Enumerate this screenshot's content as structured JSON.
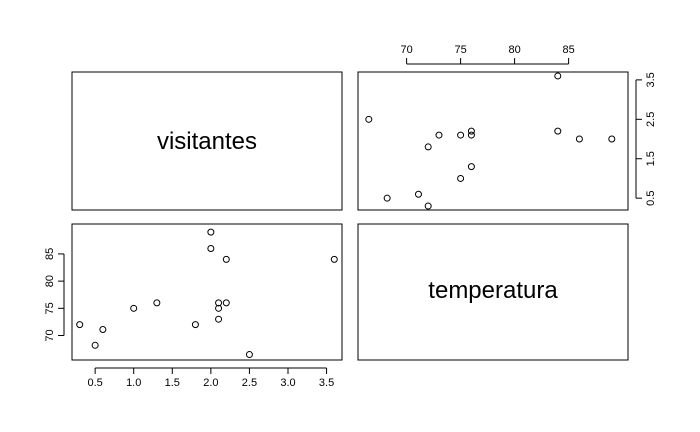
{
  "chart_data": {
    "type": "scatter",
    "variables": [
      "visitantes",
      "temperatura"
    ],
    "panels": [
      {
        "position": "top-right",
        "x_variable": "temperatura",
        "y_variable": "visitantes",
        "xlim": [
          65.5,
          90.5
        ],
        "ylim": [
          0.2,
          3.7
        ],
        "x_ticks": [
          70,
          75,
          80,
          85
        ],
        "y_ticks": [
          0.5,
          1.5,
          2.5,
          3.5
        ],
        "x_tick_labels": [
          "70",
          "75",
          "80",
          "85"
        ],
        "y_tick_labels": [
          "0.5",
          "1.5",
          "2.5",
          "3.5"
        ],
        "x_axis_side": "top",
        "y_axis_side": "right",
        "points": [
          {
            "x": 66.5,
            "y": 2.5
          },
          {
            "x": 68.2,
            "y": 0.5
          },
          {
            "x": 71.1,
            "y": 0.6
          },
          {
            "x": 72.0,
            "y": 0.3
          },
          {
            "x": 72.0,
            "y": 1.8
          },
          {
            "x": 73.0,
            "y": 2.1
          },
          {
            "x": 75.0,
            "y": 2.1
          },
          {
            "x": 75.0,
            "y": 1.0
          },
          {
            "x": 76.0,
            "y": 2.1
          },
          {
            "x": 76.0,
            "y": 2.2
          },
          {
            "x": 76.0,
            "y": 1.3
          },
          {
            "x": 84.0,
            "y": 2.2
          },
          {
            "x": 84.0,
            "y": 3.6
          },
          {
            "x": 86.0,
            "y": 2.0
          },
          {
            "x": 89.0,
            "y": 2.0
          }
        ]
      },
      {
        "position": "bottom-left",
        "x_variable": "visitantes",
        "y_variable": "temperatura",
        "xlim": [
          0.2,
          3.7
        ],
        "ylim": [
          65.5,
          90.5
        ],
        "x_ticks": [
          0.5,
          1.0,
          1.5,
          2.0,
          2.5,
          3.0,
          3.5
        ],
        "y_ticks": [
          70,
          75,
          80,
          85
        ],
        "x_tick_labels": [
          "0.5",
          "1.0",
          "1.5",
          "2.0",
          "2.5",
          "3.0",
          "3.5"
        ],
        "y_tick_labels": [
          "70",
          "75",
          "80",
          "85"
        ],
        "x_axis_side": "bottom",
        "y_axis_side": "left",
        "points": [
          {
            "x": 0.3,
            "y": 72.0
          },
          {
            "x": 0.5,
            "y": 68.2
          },
          {
            "x": 0.6,
            "y": 71.1
          },
          {
            "x": 1.0,
            "y": 75.0
          },
          {
            "x": 1.3,
            "y": 76.0
          },
          {
            "x": 1.8,
            "y": 72.0
          },
          {
            "x": 2.0,
            "y": 89.0
          },
          {
            "x": 2.0,
            "y": 86.0
          },
          {
            "x": 2.1,
            "y": 76.0
          },
          {
            "x": 2.1,
            "y": 75.0
          },
          {
            "x": 2.1,
            "y": 73.0
          },
          {
            "x": 2.2,
            "y": 76.0
          },
          {
            "x": 2.2,
            "y": 84.0
          },
          {
            "x": 2.5,
            "y": 66.5
          },
          {
            "x": 3.6,
            "y": 84.0
          }
        ]
      }
    ],
    "diagonal_labels": [
      "visitantes",
      "temperatura"
    ],
    "grid": false,
    "marker": "open-circle"
  }
}
